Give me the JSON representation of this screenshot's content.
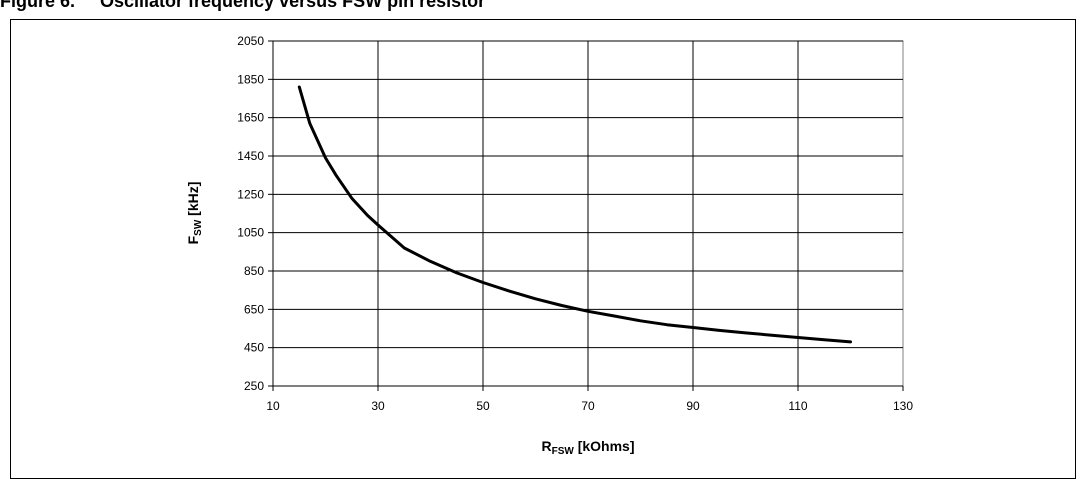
{
  "figure": {
    "caption": "Figure 6.     Oscillator frequency versus FSW pin resistor"
  },
  "chart_data": {
    "type": "line",
    "title": "",
    "xlabel": {
      "main": "R",
      "sub": "FSW",
      "rest": " [kOhms]"
    },
    "ylabel": {
      "main": "F",
      "sub": "SW",
      "rest": " [kHz]"
    },
    "xlim": [
      10,
      130
    ],
    "ylim": [
      250,
      2050
    ],
    "x_ticks": [
      10,
      30,
      50,
      70,
      90,
      110,
      130
    ],
    "y_ticks": [
      250,
      450,
      650,
      850,
      1050,
      1250,
      1450,
      1650,
      1850,
      2050
    ],
    "grid": true,
    "legend": "none",
    "series": [
      {
        "color": "#000000",
        "x": [
          15,
          17,
          20,
          22,
          25,
          28,
          30,
          35,
          40,
          45,
          50,
          55,
          60,
          65,
          70,
          75,
          80,
          85,
          90,
          95,
          100,
          105,
          110,
          115,
          120
        ],
        "y": [
          1810,
          1620,
          1440,
          1350,
          1230,
          1140,
          1090,
          970,
          900,
          840,
          790,
          745,
          705,
          670,
          640,
          615,
          590,
          570,
          555,
          540,
          527,
          515,
          503,
          491,
          480
        ]
      }
    ]
  }
}
